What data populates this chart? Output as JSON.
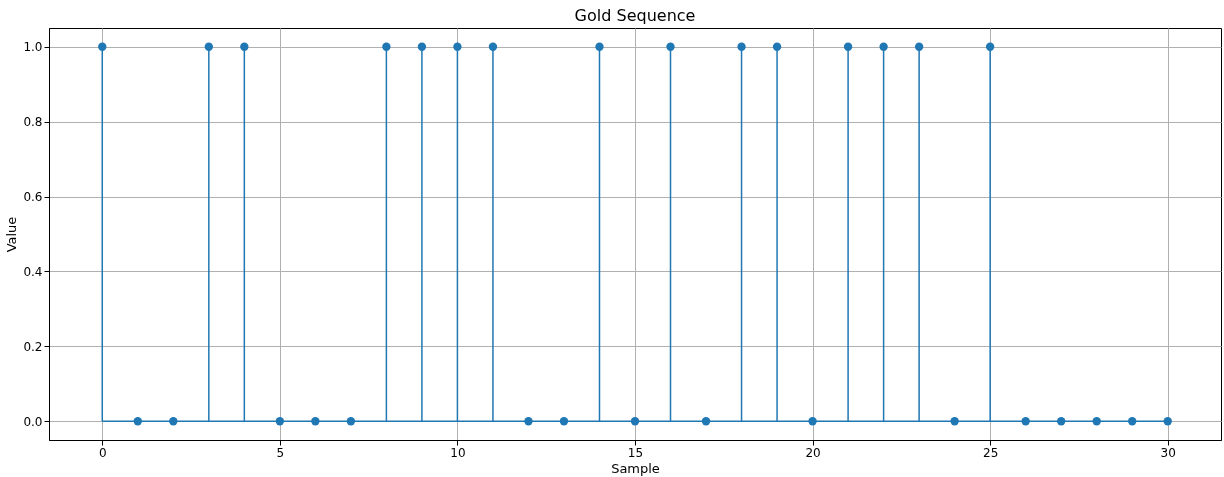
{
  "chart_data": {
    "type": "lollipop",
    "title": "Gold Sequence",
    "xlabel": "Sample",
    "ylabel": "Value",
    "x": [
      0,
      1,
      2,
      3,
      4,
      5,
      6,
      7,
      8,
      9,
      10,
      11,
      12,
      13,
      14,
      15,
      16,
      17,
      18,
      19,
      20,
      21,
      22,
      23,
      24,
      25,
      26,
      27,
      28,
      29,
      30
    ],
    "series": [
      {
        "color": "#1f77b4",
        "values": [
          1,
          0,
          0,
          1,
          1,
          0,
          0,
          0,
          1,
          1,
          1,
          1,
          0,
          0,
          1,
          0,
          1,
          0,
          1,
          1,
          0,
          1,
          1,
          1,
          0,
          1,
          0,
          0,
          0,
          0,
          0
        ]
      }
    ],
    "xlim": [
      -1.5,
      31.5
    ],
    "ylim": [
      -0.05,
      1.05
    ],
    "xticks": [
      0,
      5,
      10,
      15,
      20,
      25,
      30
    ],
    "yticks": [
      {
        "value": 0,
        "label": "0.0"
      },
      {
        "value": 0.2,
        "label": "0.2"
      },
      {
        "value": 0.4,
        "label": "0.4"
      },
      {
        "value": 0.6,
        "label": "0.6"
      },
      {
        "value": 0.8,
        "label": "0.8"
      },
      {
        "value": 1,
        "label": "1.0"
      }
    ],
    "grid": true,
    "marker": "circle"
  }
}
